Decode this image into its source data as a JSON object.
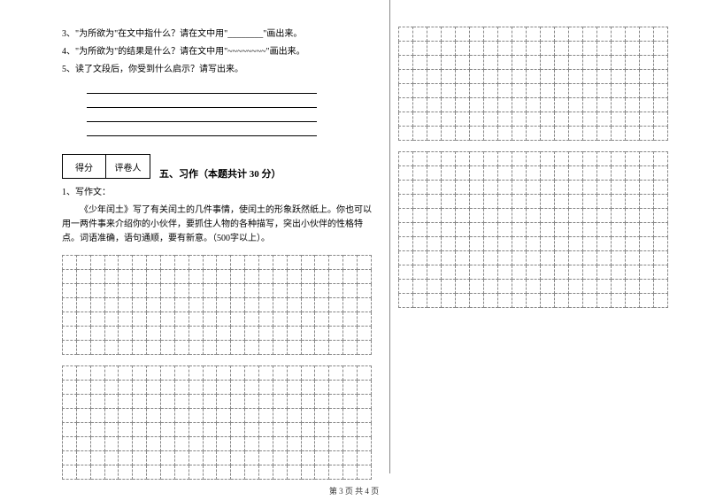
{
  "questions": {
    "q3": "3、\"为所欲为\"在文中指什么？请在文中用\"________\"画出来。",
    "q4": "4、\"为所欲为\"的结果是什么？请在文中用\"~~~~~~~~\"画出来。",
    "q5": "5、读了文段后，你受到什么启示？请写出来。"
  },
  "scorebox": {
    "score_label": "得分",
    "grader_label": "评卷人"
  },
  "section": {
    "title": "五、习作（本题共计 30 分）"
  },
  "essay": {
    "prompt_label": "1、写作文：",
    "body": "《少年闰土》写了有关闰土的几件事情，使闰土的形象跃然纸上。你也可以用一两件事来介绍你的小伙伴，要抓住人物的各种描写，突出小伙伴的性格特点。词语准确，语句通顺，要有新意。（500字以上）。"
  },
  "grids": {
    "left_block1": {
      "rows": 7,
      "cols": 22
    },
    "left_block2": {
      "rows": 8,
      "cols": 22
    },
    "right_block1": {
      "rows": 8,
      "cols": 19
    },
    "right_block2": {
      "rows": 11,
      "cols": 19
    }
  },
  "footer": "第 3 页  共 4 页",
  "style": {
    "cell_border_color": "#888888",
    "text_color": "#000000",
    "background": "#ffffff",
    "base_font_size": 10
  }
}
